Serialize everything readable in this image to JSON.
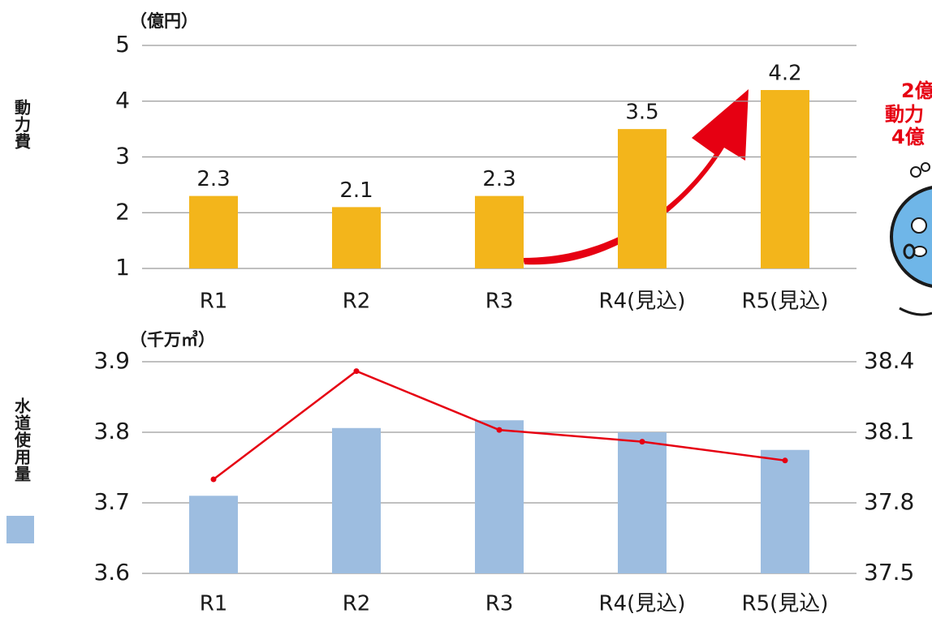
{
  "chart_data": [
    {
      "type": "bar",
      "y_label": "動力費",
      "unit": "（億円）",
      "categories": [
        "R1",
        "R2",
        "R3",
        "R4(見込)",
        "R5(見込)"
      ],
      "values": [
        2.3,
        2.1,
        2.3,
        3.5,
        4.2
      ],
      "color": "#f3b51b",
      "ylim": [
        1,
        5
      ],
      "yticks": [
        1,
        2,
        3,
        4,
        5
      ],
      "grid": true,
      "annotations": [
        "2億",
        "動力",
        "4億"
      ]
    },
    {
      "type": "combo",
      "unit": "（千万㎥）",
      "categories": [
        "R1",
        "R2",
        "R3",
        "R4(見込)",
        "R5(見込)"
      ],
      "series": [
        {
          "name": "水道使用量",
          "type": "bar",
          "color": "#9dbde0",
          "values": [
            3.71,
            3.806,
            3.817,
            3.8,
            3.775
          ]
        },
        {
          "type": "line",
          "axis": "y2",
          "color": "#e60012",
          "values": [
            37.9,
            38.36,
            38.11,
            38.06,
            37.98
          ]
        }
      ],
      "ylim": [
        3.6,
        3.9
      ],
      "yticks": [
        3.6,
        3.7,
        3.8,
        3.9
      ],
      "y2lim": [
        37.5,
        38.4
      ],
      "y2ticks": [
        37.5,
        37.8,
        38.1,
        38.4
      ],
      "grid": true
    }
  ]
}
